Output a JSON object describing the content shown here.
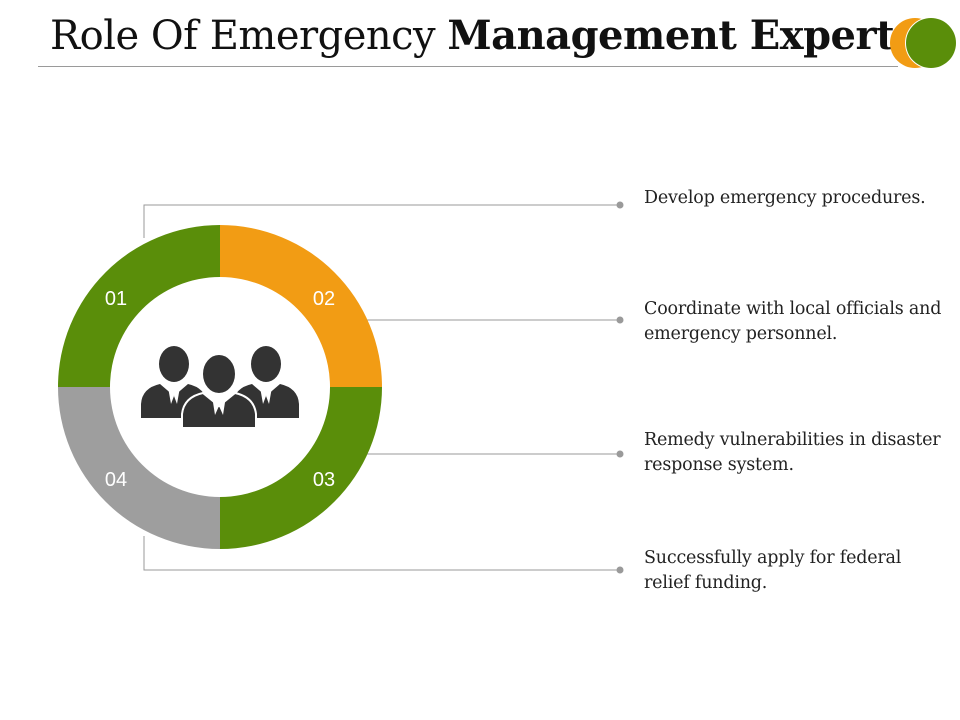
{
  "title": {
    "light": "Role Of Emergency ",
    "bold": "Management Expert"
  },
  "colors": {
    "green": "#5a8e0a",
    "orange": "#f29c14",
    "gray": "#9e9e9e",
    "icon": "#333333",
    "connector": "#9a9a9a"
  },
  "diagram": {
    "center_icon": "people-group-icon",
    "segments": [
      {
        "label": "01",
        "color": "#5a8e0a"
      },
      {
        "label": "02",
        "color": "#f29c14"
      },
      {
        "label": "03",
        "color": "#5a8e0a"
      },
      {
        "label": "04",
        "color": "#9e9e9e"
      }
    ]
  },
  "items": [
    {
      "text": "Develop emergency procedures."
    },
    {
      "text": "Coordinate with local officials and emergency personnel."
    },
    {
      "text": "Remedy vulnerabilities in disaster response system."
    },
    {
      "text": "Successfully apply for federal relief funding."
    }
  ]
}
